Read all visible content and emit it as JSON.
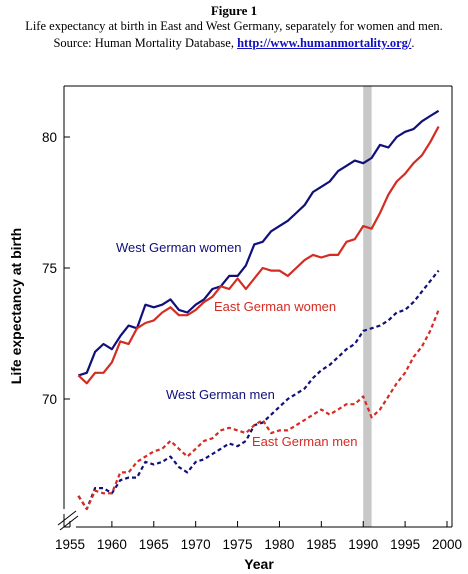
{
  "figure": {
    "label": "Figure 1",
    "caption_line1": "Life expectancy at birth in East and West Germany, separately for women and men.",
    "caption_source_prefix": "Source: Human Mortality Database, ",
    "caption_link": "http://www.humanmortality.org/",
    "caption_suffix": "."
  },
  "chart_data": {
    "type": "line",
    "title": "",
    "xlabel": "Year",
    "ylabel": "Life expectancy at birth",
    "xlim": [
      1955,
      2000
    ],
    "ylim": [
      65,
      82
    ],
    "axis_break": true,
    "xticks": [
      1955,
      1960,
      1965,
      1970,
      1975,
      1980,
      1985,
      1990,
      1995,
      2000
    ],
    "yticks": [
      70,
      75,
      80
    ],
    "grid": false,
    "legend": "none (series labeled directly in plot)",
    "highlight_band": {
      "from": 1990,
      "to": 1991,
      "color": "#c8c8c8"
    },
    "x": [
      1956,
      1957,
      1958,
      1959,
      1960,
      1961,
      1962,
      1963,
      1964,
      1965,
      1966,
      1967,
      1968,
      1969,
      1970,
      1971,
      1972,
      1973,
      1974,
      1975,
      1976,
      1977,
      1978,
      1979,
      1980,
      1981,
      1982,
      1983,
      1984,
      1985,
      1986,
      1987,
      1988,
      1989,
      1990,
      1991,
      1992,
      1993,
      1994,
      1995,
      1996,
      1997,
      1998,
      1999
    ],
    "series": [
      {
        "name": "West German women",
        "color": "#10107a",
        "dash": "solid",
        "values": [
          70.9,
          71.0,
          71.8,
          72.1,
          71.9,
          72.4,
          72.8,
          72.7,
          73.6,
          73.5,
          73.6,
          73.8,
          73.4,
          73.3,
          73.6,
          73.8,
          74.2,
          74.3,
          74.7,
          74.7,
          75.1,
          75.9,
          76.0,
          76.4,
          76.6,
          76.8,
          77.1,
          77.4,
          77.9,
          78.1,
          78.3,
          78.7,
          78.9,
          79.1,
          79.0,
          79.2,
          79.7,
          79.6,
          80.0,
          80.2,
          80.3,
          80.6,
          80.8,
          81.0
        ]
      },
      {
        "name": "East German women",
        "color": "#d42c22",
        "dash": "solid",
        "values": [
          70.9,
          70.6,
          71.0,
          71.0,
          71.4,
          72.2,
          72.1,
          72.7,
          72.9,
          73.0,
          73.3,
          73.5,
          73.2,
          73.2,
          73.4,
          73.7,
          73.9,
          74.3,
          74.2,
          74.6,
          74.2,
          74.6,
          75.0,
          74.9,
          74.9,
          74.7,
          75.0,
          75.3,
          75.5,
          75.4,
          75.5,
          75.5,
          76.0,
          76.1,
          76.6,
          76.5,
          77.1,
          77.8,
          78.3,
          78.6,
          79.0,
          79.3,
          79.8,
          80.4
        ]
      },
      {
        "name": "West German men",
        "color": "#10107a",
        "dash": "dashed",
        "values": [
          66.3,
          65.8,
          66.6,
          66.6,
          66.4,
          66.9,
          67.0,
          67.0,
          67.6,
          67.5,
          67.6,
          67.8,
          67.4,
          67.2,
          67.6,
          67.7,
          67.9,
          68.1,
          68.3,
          68.2,
          68.4,
          69.0,
          69.1,
          69.4,
          69.7,
          70.0,
          70.2,
          70.4,
          70.8,
          71.1,
          71.3,
          71.6,
          71.9,
          72.1,
          72.6,
          72.7,
          72.8,
          73.0,
          73.3,
          73.4,
          73.7,
          74.1,
          74.5,
          74.9
        ]
      },
      {
        "name": "East German men",
        "color": "#d42c22",
        "dash": "dashed",
        "values": [
          66.3,
          65.8,
          66.5,
          66.4,
          66.4,
          67.2,
          67.2,
          67.6,
          67.8,
          68.0,
          68.1,
          68.4,
          68.1,
          67.8,
          68.1,
          68.4,
          68.5,
          68.8,
          68.9,
          68.8,
          68.7,
          69.0,
          69.2,
          68.7,
          68.8,
          68.8,
          69.0,
          69.2,
          69.4,
          69.6,
          69.4,
          69.6,
          69.8,
          69.8,
          70.1,
          69.3,
          69.6,
          70.1,
          70.6,
          71.0,
          71.6,
          72.0,
          72.6,
          73.4
        ]
      }
    ]
  }
}
